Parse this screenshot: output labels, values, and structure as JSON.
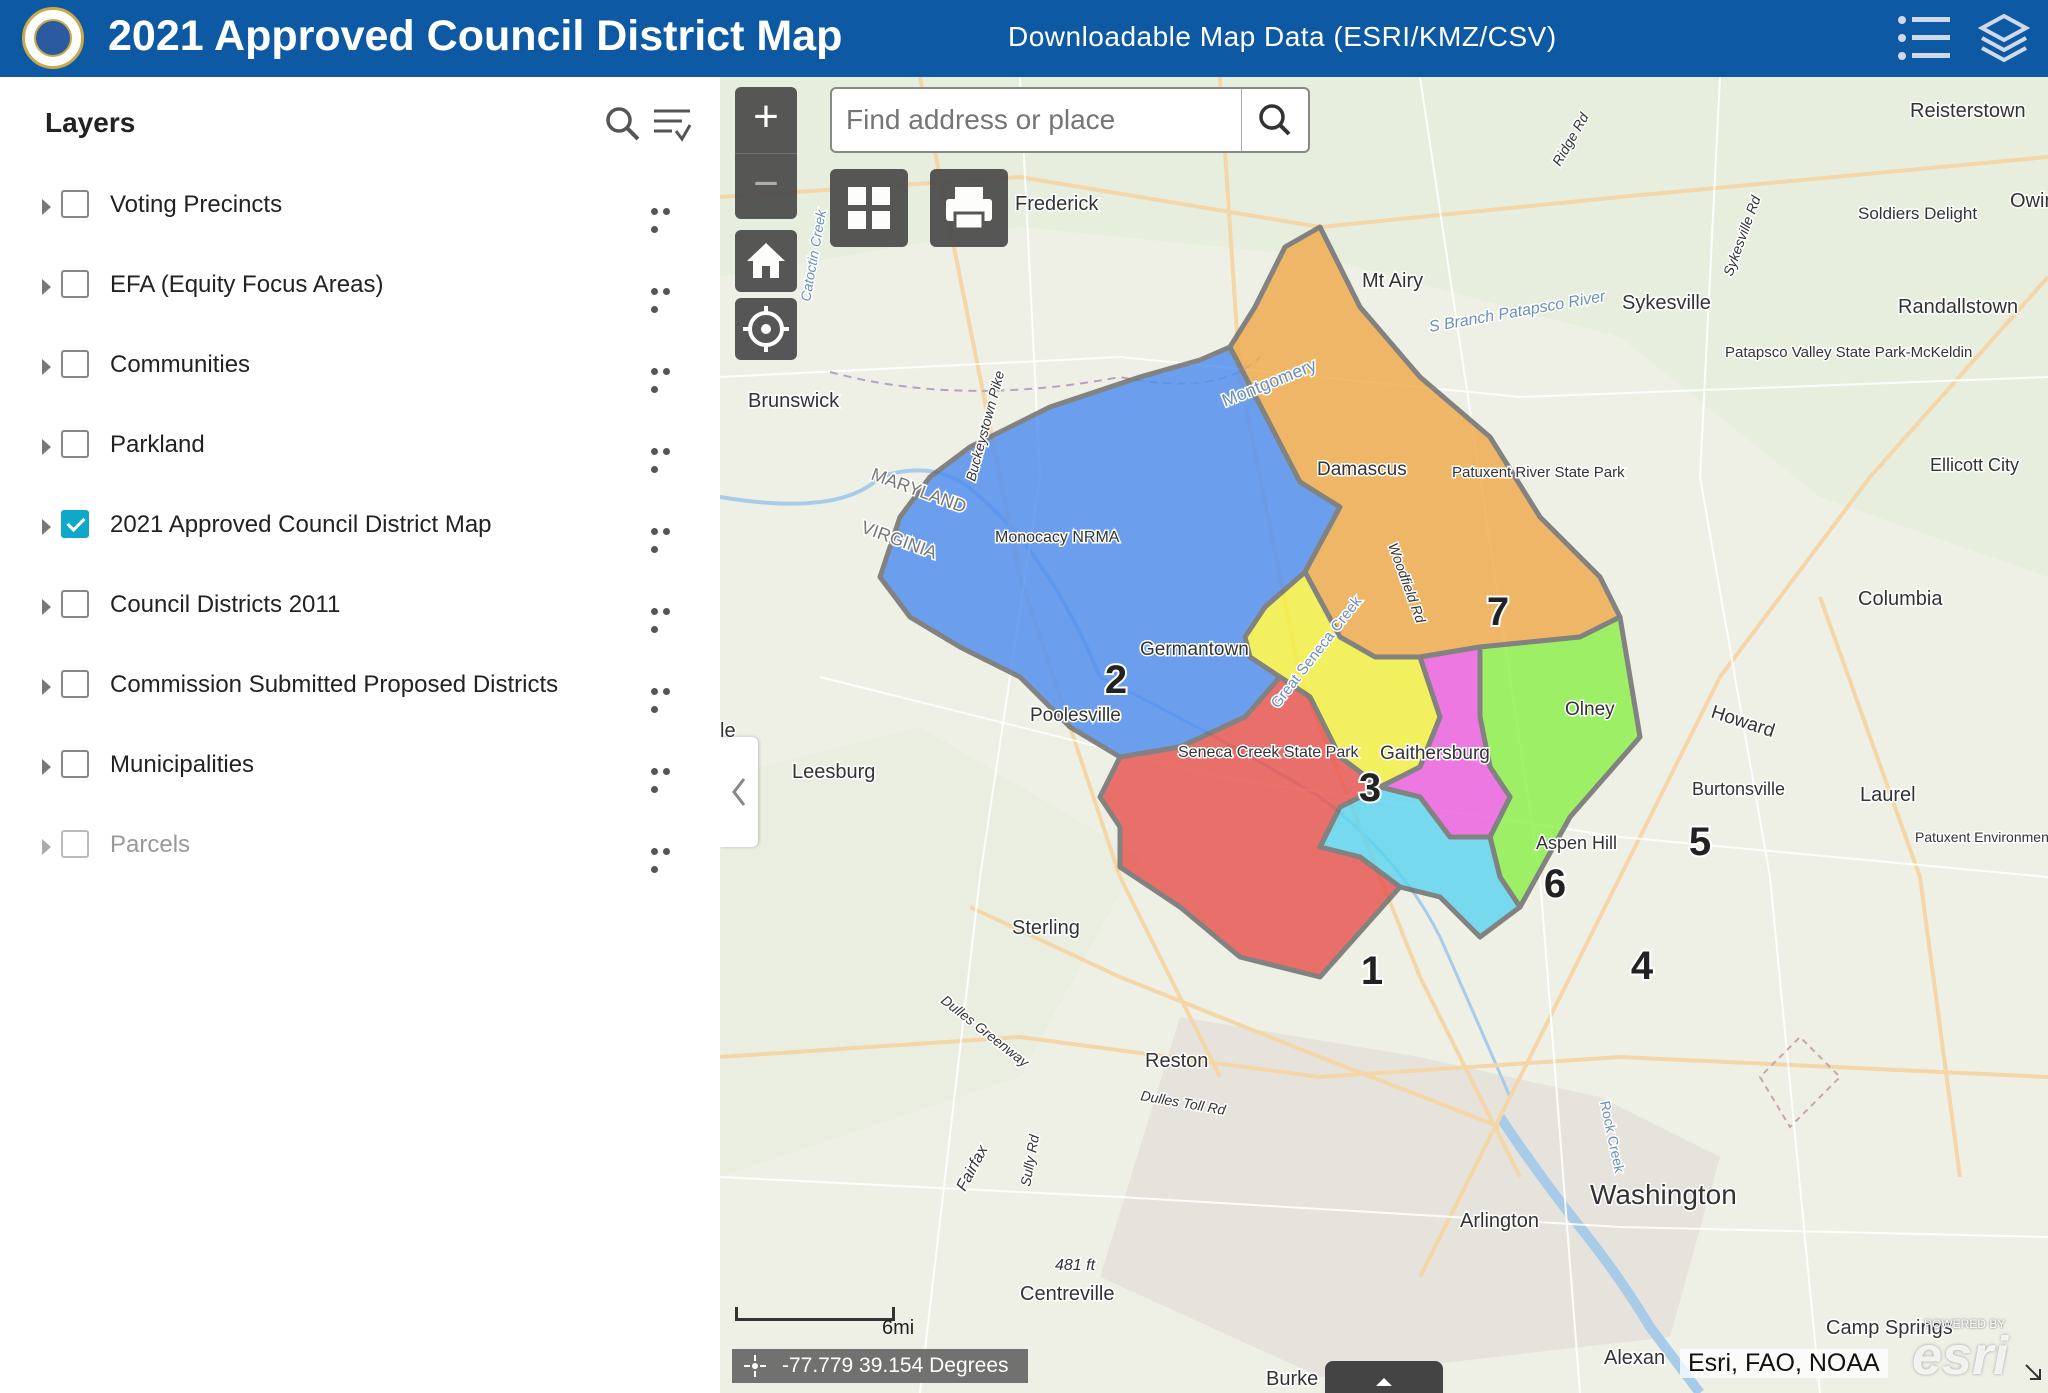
{
  "header": {
    "title": "2021 Approved Council District Map",
    "download_link": "Downloadable Map Data (ESRI/KMZ/CSV)",
    "logo_icon": "county-seal-logo",
    "legend_icon": "list-icon",
    "layers_icon": "layers-icon",
    "bg_color": "#0e59a3"
  },
  "layers_panel": {
    "title": "Layers",
    "layers": [
      {
        "label": "Voting Precincts",
        "checked": false,
        "enabled": true
      },
      {
        "label": "EFA (Equity Focus Areas)",
        "checked": false,
        "enabled": true
      },
      {
        "label": "Communities",
        "checked": false,
        "enabled": true
      },
      {
        "label": "Parkland",
        "checked": false,
        "enabled": true
      },
      {
        "label": "2021 Approved Council District Map",
        "checked": true,
        "enabled": true
      },
      {
        "label": "Council Districts 2011",
        "checked": false,
        "enabled": true
      },
      {
        "label": "Commission Submitted Proposed Districts",
        "checked": false,
        "enabled": true
      },
      {
        "label": "Municipalities",
        "checked": false,
        "enabled": true
      },
      {
        "label": "Parcels",
        "checked": false,
        "enabled": false
      }
    ]
  },
  "map": {
    "search_placeholder": "Find address or place",
    "zoom_in": "+",
    "zoom_out": "−",
    "scale_label": "6mi",
    "coordinates": "-77.779 39.154 Degrees",
    "attribution": "Esri, FAO, NOAA",
    "powered_by": "POWERED BY",
    "esri_logo": "esri",
    "districts": [
      {
        "number": "1",
        "color": "#e8534f"
      },
      {
        "number": "2",
        "color": "#4f8ef0"
      },
      {
        "number": "3",
        "color": "#f5f043"
      },
      {
        "number": "4",
        "color": "#5cd4f0"
      },
      {
        "number": "5",
        "color": "#8cf04a"
      },
      {
        "number": "6",
        "color": "#ee5ee0"
      },
      {
        "number": "7",
        "color": "#f0aa4c"
      }
    ],
    "place_labels": {
      "frederick": "Frederick",
      "mt_airy": "Mt Airy",
      "sykesville": "Sykesville",
      "reisterstown": "Reisterstown",
      "owings": "Owing",
      "soldiers_delight": "Soldiers Delight",
      "randallstown": "Randallstown",
      "patapsco": "Patapsco Valley State Park-McKeldin",
      "ellicott_city": "Ellicott City",
      "columbia": "Columbia",
      "brunswick": "Brunswick",
      "maryland": "MARYLAND",
      "virginia": "VIRGINIA",
      "monocacy": "Monocacy NRMA",
      "damascus": "Damascus",
      "patuxent_river": "Patuxent River State Park",
      "germantown": "Germantown",
      "poolesville": "Poolesville",
      "seneca": "Seneca Creek State Park",
      "gaithersburg": "Gaithersburg",
      "olney": "Olney",
      "howard": "Howard",
      "burtonsville": "Burtonsville",
      "laurel": "Laurel",
      "aspen_hill": "Aspen Hill",
      "patuxent_env": "Patuxent Environmental Science Center",
      "leesburg": "Leesburg",
      "sterling": "Sterling",
      "reston": "Reston",
      "washington": "Washington",
      "arlington": "Arlington",
      "centreville": "Centreville",
      "camp_springs": "Camp Springs",
      "alexandria": "Alexan",
      "burke": "Burke",
      "rd_481": "481 ft",
      "dulles_greenway": "Dulles Greenway",
      "dulles_toll": "Dulles Toll Rd",
      "fairfax": "Fairfax",
      "sully": "Sully Rd",
      "s_branch": "S Branch Patapsco River",
      "woodfield": "Woodfield Rd",
      "buckeystown": "Buckeystown Pike",
      "ridge_rd": "Ridge Rd",
      "sykesville_rd": "Sykesville Rd",
      "catoctin": "Catoctin Creek",
      "montgomery": "Montgomery",
      "great_seneca": "Great Seneca Creek",
      "rock_creek": "Rock Creek",
      "le": "le"
    }
  }
}
